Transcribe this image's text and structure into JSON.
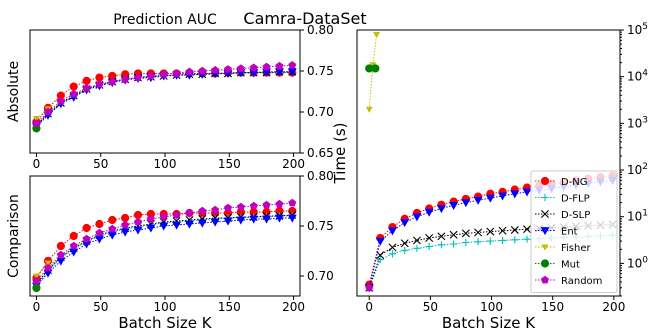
{
  "figure": {
    "suptitle": "Camra-DataSet"
  },
  "series_styles": [
    {
      "name": "D-NG",
      "color": "#ff0000",
      "marker": "circle",
      "line": "dotted"
    },
    {
      "name": "D-FLP",
      "color": "#00bfbf",
      "marker": "plus",
      "line": "dotted"
    },
    {
      "name": "D-SLP",
      "color": "#000000",
      "marker": "x",
      "line": "dotted"
    },
    {
      "name": "Ent",
      "color": "#0000ff",
      "marker": "triangle-down",
      "line": "dotted"
    },
    {
      "name": "Fisher",
      "color": "#bfbf00",
      "marker": "triangle-down-small",
      "line": "dotted"
    },
    {
      "name": "Mut",
      "color": "#008000",
      "marker": "circle",
      "line": "dotted"
    },
    {
      "name": "Random",
      "color": "#bf00bf",
      "marker": "pentagon",
      "line": "dotted"
    }
  ],
  "chart_data": [
    {
      "id": "absolute",
      "type": "line",
      "title": "Prediction AUC",
      "ylabel": "Absolute",
      "xlabel": "",
      "xlim": [
        -5,
        205
      ],
      "ylim": [
        0.65,
        0.8
      ],
      "x_ticks": [
        0,
        50,
        100,
        150,
        200
      ],
      "y_ticks": [
        0.65,
        0.7,
        0.75,
        0.8
      ],
      "y_tick_labels": [
        "0.65",
        "0.70",
        "0.75",
        "0.80"
      ],
      "y_axis_side": "right",
      "legend": "none",
      "series": [
        {
          "name": "D-NG",
          "x": [
            0,
            9,
            19,
            29,
            39,
            49,
            59,
            69,
            79,
            89,
            99,
            109,
            119,
            129,
            139,
            149,
            159,
            169,
            179,
            189,
            199
          ],
          "y": [
            0.688,
            0.705,
            0.72,
            0.731,
            0.738,
            0.742,
            0.744,
            0.746,
            0.747,
            0.747,
            0.747,
            0.747,
            0.747,
            0.747,
            0.747,
            0.748,
            0.748,
            0.748,
            0.748,
            0.748,
            0.748
          ]
        },
        {
          "name": "D-FLP",
          "x": [
            0,
            9,
            19,
            29,
            39,
            49,
            59,
            69,
            79,
            89,
            99,
            109,
            119,
            129,
            139,
            149,
            159,
            169,
            179,
            189,
            199
          ],
          "y": [
            0.683,
            0.697,
            0.71,
            0.719,
            0.727,
            0.733,
            0.737,
            0.74,
            0.742,
            0.743,
            0.744,
            0.745,
            0.745,
            0.746,
            0.746,
            0.747,
            0.747,
            0.748,
            0.748,
            0.748,
            0.749
          ]
        },
        {
          "name": "D-SLP",
          "x": [
            0,
            9,
            19,
            29,
            39,
            49,
            59,
            69,
            79,
            89,
            99,
            109,
            119,
            129,
            139,
            149,
            159,
            169,
            179,
            189,
            199
          ],
          "y": [
            0.684,
            0.698,
            0.711,
            0.72,
            0.728,
            0.733,
            0.737,
            0.74,
            0.742,
            0.743,
            0.744,
            0.745,
            0.746,
            0.746,
            0.747,
            0.747,
            0.748,
            0.748,
            0.748,
            0.749,
            0.749
          ]
        },
        {
          "name": "Ent",
          "x": [
            0,
            9,
            19,
            29,
            39,
            49,
            59,
            69,
            79,
            89,
            99,
            109,
            119,
            129,
            139,
            149,
            159,
            169,
            179,
            189,
            199
          ],
          "y": [
            0.682,
            0.696,
            0.71,
            0.718,
            0.727,
            0.732,
            0.736,
            0.739,
            0.741,
            0.742,
            0.744,
            0.745,
            0.745,
            0.746,
            0.747,
            0.747,
            0.748,
            0.748,
            0.749,
            0.749,
            0.749
          ]
        },
        {
          "name": "Fisher",
          "x": [
            0,
            9
          ],
          "y": [
            0.692,
            0.704
          ]
        },
        {
          "name": "Mut",
          "x": [
            0
          ],
          "y": [
            0.68
          ]
        },
        {
          "name": "Random",
          "x": [
            0,
            9,
            19,
            29,
            39,
            49,
            59,
            69,
            79,
            89,
            99,
            109,
            119,
            129,
            139,
            149,
            159,
            169,
            179,
            189,
            199
          ],
          "y": [
            0.686,
            0.7,
            0.713,
            0.722,
            0.729,
            0.734,
            0.737,
            0.74,
            0.742,
            0.744,
            0.746,
            0.747,
            0.749,
            0.75,
            0.751,
            0.752,
            0.753,
            0.754,
            0.755,
            0.756,
            0.757
          ]
        }
      ]
    },
    {
      "id": "comparison",
      "type": "line",
      "title": "",
      "ylabel": "Comparison",
      "xlabel": "Batch Size K",
      "xlim": [
        -5,
        205
      ],
      "ylim": [
        0.68,
        0.8
      ],
      "x_ticks": [
        0,
        50,
        100,
        150,
        200
      ],
      "y_ticks": [
        0.7,
        0.75,
        0.8
      ],
      "y_tick_labels": [
        "0.70",
        "0.75",
        "0.80"
      ],
      "y_axis_side": "right",
      "legend": "none",
      "series": [
        {
          "name": "D-NG",
          "x": [
            0,
            9,
            19,
            29,
            39,
            49,
            59,
            69,
            79,
            89,
            99,
            109,
            119,
            129,
            139,
            149,
            159,
            169,
            179,
            189,
            199
          ],
          "y": [
            0.698,
            0.715,
            0.73,
            0.74,
            0.748,
            0.752,
            0.756,
            0.758,
            0.761,
            0.762,
            0.762,
            0.762,
            0.763,
            0.763,
            0.763,
            0.763,
            0.764,
            0.764,
            0.764,
            0.765,
            0.765
          ]
        },
        {
          "name": "D-FLP",
          "x": [
            0,
            9,
            19,
            29,
            39,
            49,
            59,
            69,
            79,
            89,
            99,
            109,
            119,
            129,
            139,
            149,
            159,
            169,
            179,
            189,
            199
          ],
          "y": [
            0.69,
            0.705,
            0.718,
            0.727,
            0.734,
            0.74,
            0.744,
            0.747,
            0.749,
            0.751,
            0.753,
            0.754,
            0.755,
            0.756,
            0.757,
            0.758,
            0.758,
            0.759,
            0.759,
            0.76,
            0.76
          ]
        },
        {
          "name": "D-SLP",
          "x": [
            0,
            9,
            19,
            29,
            39,
            49,
            59,
            69,
            79,
            89,
            99,
            109,
            119,
            129,
            139,
            149,
            159,
            169,
            179,
            189,
            199
          ],
          "y": [
            0.692,
            0.706,
            0.719,
            0.728,
            0.735,
            0.741,
            0.745,
            0.748,
            0.75,
            0.752,
            0.754,
            0.755,
            0.756,
            0.757,
            0.758,
            0.758,
            0.759,
            0.759,
            0.76,
            0.76,
            0.761
          ]
        },
        {
          "name": "Ent",
          "x": [
            0,
            9,
            19,
            29,
            39,
            49,
            59,
            69,
            79,
            89,
            99,
            109,
            119,
            129,
            139,
            149,
            159,
            169,
            179,
            189,
            199
          ],
          "y": [
            0.69,
            0.703,
            0.715,
            0.724,
            0.732,
            0.737,
            0.741,
            0.744,
            0.746,
            0.748,
            0.75,
            0.751,
            0.752,
            0.753,
            0.754,
            0.755,
            0.756,
            0.757,
            0.757,
            0.758,
            0.758
          ]
        },
        {
          "name": "Fisher",
          "x": [
            0,
            9
          ],
          "y": [
            0.7,
            0.713
          ]
        },
        {
          "name": "Mut",
          "x": [
            0
          ],
          "y": [
            0.688
          ]
        },
        {
          "name": "Random",
          "x": [
            0,
            9,
            19,
            29,
            39,
            49,
            59,
            69,
            79,
            89,
            99,
            109,
            119,
            129,
            139,
            149,
            159,
            169,
            179,
            189,
            199
          ],
          "y": [
            0.695,
            0.708,
            0.721,
            0.73,
            0.737,
            0.743,
            0.747,
            0.751,
            0.754,
            0.757,
            0.759,
            0.761,
            0.763,
            0.765,
            0.766,
            0.768,
            0.769,
            0.77,
            0.771,
            0.772,
            0.773
          ]
        }
      ]
    },
    {
      "id": "time",
      "type": "line",
      "title": "",
      "ylabel": "Time (s)",
      "xlabel": "Batch Size K",
      "xlim": [
        -10,
        205
      ],
      "ylim": [
        0.2,
        100000
      ],
      "y_scale": "log",
      "x_ticks": [
        0,
        50,
        100,
        150,
        200
      ],
      "y_ticks": [
        1,
        10,
        100,
        1000,
        10000,
        100000
      ],
      "y_tick_labels": [
        "10^0",
        "10^1",
        "10^2",
        "10^3",
        "10^4",
        "10^5"
      ],
      "y_axis_side": "right",
      "legend": "lower-right",
      "series": [
        {
          "name": "D-NG",
          "x": [
            0,
            9,
            19,
            29,
            39,
            49,
            59,
            69,
            79,
            89,
            99,
            109,
            119,
            129,
            139,
            149,
            159,
            169,
            179,
            189,
            199
          ],
          "y": [
            0.35,
            3.5,
            6,
            9,
            12,
            15,
            18,
            21,
            24,
            27,
            31,
            34,
            38,
            42,
            46,
            50,
            55,
            60,
            65,
            70,
            75
          ]
        },
        {
          "name": "D-FLP",
          "x": [
            0,
            9,
            19,
            29,
            39,
            49,
            59,
            69,
            79,
            89,
            99,
            109,
            119,
            129,
            139,
            149,
            159,
            169,
            179,
            189,
            199
          ],
          "y": [
            0.3,
            1.2,
            1.6,
            1.9,
            2.1,
            2.3,
            2.5,
            2.6,
            2.8,
            2.9,
            3.0,
            3.1,
            3.2,
            3.3,
            3.4,
            3.5,
            3.6,
            3.7,
            3.8,
            3.9,
            4.0
          ]
        },
        {
          "name": "D-SLP",
          "x": [
            0,
            9,
            19,
            29,
            39,
            49,
            59,
            69,
            79,
            89,
            99,
            109,
            119,
            129,
            139,
            149,
            159,
            169,
            179,
            189,
            199
          ],
          "y": [
            0.3,
            1.5,
            2.2,
            2.7,
            3.1,
            3.5,
            3.8,
            4.1,
            4.4,
            4.6,
            4.8,
            5.0,
            5.2,
            5.4,
            5.6,
            5.8,
            6.0,
            6.2,
            6.4,
            6.6,
            6.8
          ]
        },
        {
          "name": "Ent",
          "x": [
            0,
            9,
            19,
            29,
            39,
            49,
            59,
            69,
            79,
            89,
            99,
            109,
            119,
            129,
            139,
            149,
            159,
            169,
            179,
            189,
            199
          ],
          "y": [
            0.3,
            3,
            5,
            7.5,
            10,
            12.5,
            15,
            17.5,
            20,
            22.5,
            25,
            28,
            31,
            34,
            37,
            40,
            44,
            48,
            52,
            56,
            60
          ]
        },
        {
          "name": "Fisher",
          "x": [
            0,
            3,
            6
          ],
          "y": [
            2000,
            18000,
            80000
          ]
        },
        {
          "name": "Mut",
          "x": [
            0,
            5
          ],
          "y": [
            15000,
            15000
          ]
        },
        {
          "name": "Random",
          "x": [
            0
          ],
          "y": [
            0.3
          ]
        }
      ]
    }
  ]
}
